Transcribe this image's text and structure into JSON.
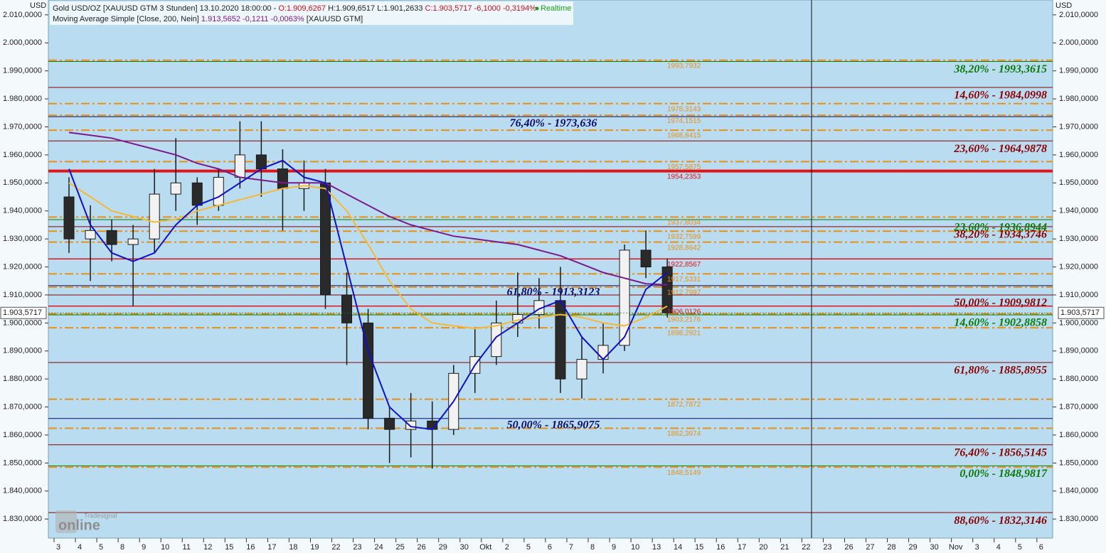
{
  "chart_data": {
    "type": "candlestick",
    "unit_left": "USD",
    "unit_right": "USD",
    "header": {
      "title": "Gold USD/OZ [XAUUSD GTM 3 Stunden] 13.10.2020 18:00:00 -",
      "open": "O:1.909,6267",
      "high": "H:1.909,6517",
      "low": "L:1.901,2633",
      "close": "C:1.903,5717 -6,1000 -0,3194%",
      "status": "Realtime"
    },
    "categories": [
      "3",
      "4",
      "5",
      "8",
      "9",
      "10",
      "11",
      "12",
      "15",
      "16",
      "17",
      "18",
      "19",
      "22",
      "23",
      "24",
      "25",
      "26",
      "29",
      "30",
      "Okt",
      "2",
      "5",
      "6",
      "7",
      "8",
      "9",
      "10",
      "13",
      "14",
      "15",
      "16",
      "17",
      "20",
      "21",
      "22",
      "23",
      "26",
      "27",
      "28",
      "29",
      "30",
      "Nov",
      "3",
      "4",
      "5",
      "6"
    ],
    "ohlc": {
      "open": [
        1945,
        1930,
        1933,
        1928,
        1930,
        1946,
        1950,
        1942,
        1952,
        1960,
        1955,
        1948,
        1950,
        1910,
        1900,
        1866,
        1862,
        1865,
        1862,
        1882,
        1888,
        1900,
        1903,
        1908,
        1880,
        1887,
        1892,
        1926,
        1920,
        null,
        null,
        null,
        null,
        null,
        null,
        null,
        null,
        null,
        null,
        null,
        null,
        null,
        null,
        null,
        null,
        null,
        null
      ],
      "high": [
        1952,
        1942,
        1937,
        1935,
        1955,
        1966,
        1952,
        1955,
        1972,
        1972,
        1962,
        1958,
        1955,
        1918,
        1905,
        1870,
        1875,
        1872,
        1885,
        1898,
        1908,
        1918,
        1916,
        1920,
        1895,
        1900,
        1928,
        1933,
        1923,
        null,
        null,
        null,
        null,
        null,
        null,
        null,
        null,
        null,
        null,
        null,
        null,
        null,
        null,
        null,
        null,
        null,
        null
      ],
      "low": [
        1925,
        1915,
        1922,
        1906,
        1925,
        1940,
        1935,
        1940,
        1948,
        1945,
        1933,
        1940,
        1905,
        1885,
        1862,
        1850,
        1852,
        1848,
        1860,
        1875,
        1885,
        1895,
        1898,
        1875,
        1873,
        1882,
        1890,
        1916,
        1902,
        null,
        null,
        null,
        null,
        null,
        null,
        null,
        null,
        null,
        null,
        null,
        null,
        null,
        null,
        null,
        null,
        null,
        null
      ],
      "close": [
        1930,
        1933,
        1928,
        1930,
        1946,
        1950,
        1942,
        1952,
        1960,
        1955,
        1948,
        1950,
        1910,
        1900,
        1866,
        1862,
        1865,
        1862,
        1882,
        1888,
        1900,
        1903,
        1908,
        1880,
        1887,
        1892,
        1926,
        1920,
        1903.5717,
        null,
        null,
        null,
        null,
        null,
        null,
        null,
        null,
        null,
        null,
        null,
        null,
        null,
        null,
        null,
        null,
        null,
        null
      ]
    },
    "series": [
      {
        "name": "Moving Average Simple [Close, 200, Nein]",
        "stats": "1.913,5652 -0,1211 -0,0063%",
        "source": "[XAUUSD GTM]",
        "color": "#7b1a8c",
        "values": [
          1968,
          1967,
          1966,
          1964,
          1962,
          1960,
          1957,
          1955,
          1952,
          1951,
          1950,
          1950,
          1950,
          1946,
          1942,
          1938,
          1935,
          1933,
          1931,
          1930,
          1929,
          1928,
          1926,
          1924,
          1921,
          1918,
          1916,
          1914,
          1913.6,
          null,
          null,
          null,
          null,
          null,
          null,
          null,
          null,
          null,
          null,
          null,
          null,
          null,
          null,
          null,
          null,
          null,
          null
        ]
      },
      {
        "color": "#f5b93a",
        "values": [
          1950,
          1945,
          1940,
          1938,
          1936,
          1937,
          1940,
          1942,
          1944,
          1946,
          1948,
          1949,
          1948,
          1940,
          1928,
          1915,
          1905,
          1900,
          1899,
          1898,
          1899,
          1901,
          1902,
          1903,
          1902,
          1900,
          1899,
          1902,
          1906,
          null,
          null,
          null,
          null,
          null,
          null,
          null,
          null,
          null,
          null,
          null,
          null,
          null,
          null,
          null,
          null,
          null,
          null
        ]
      },
      {
        "color": "#1010c8",
        "values": [
          1955,
          1935,
          1925,
          1922,
          1925,
          1935,
          1942,
          1945,
          1950,
          1955,
          1958,
          1952,
          1950,
          1920,
          1890,
          1870,
          1863,
          1862,
          1872,
          1885,
          1895,
          1900,
          1905,
          1908,
          1895,
          1887,
          1895,
          1912,
          1918,
          null,
          null,
          null,
          null,
          null,
          null,
          null,
          null,
          null,
          null,
          null,
          null,
          null,
          null,
          null,
          null,
          null,
          null
        ]
      }
    ],
    "ylim": [
      1823.2,
      2015.3
    ],
    "yticks": [
      {
        "value": 2010,
        "label": "2.010,0000"
      },
      {
        "value": 2000,
        "label": "2.000,0000"
      },
      {
        "value": 1990,
        "label": "1.990,0000"
      },
      {
        "value": 1980,
        "label": "1.980,0000"
      },
      {
        "value": 1970,
        "label": "1.970,0000"
      },
      {
        "value": 1960,
        "label": "1.960,0000"
      },
      {
        "value": 1950,
        "label": "1.950,0000"
      },
      {
        "value": 1940,
        "label": "1.940,0000"
      },
      {
        "value": 1930,
        "label": "1.930,0000"
      },
      {
        "value": 1920,
        "label": "1.920,0000"
      },
      {
        "value": 1910,
        "label": "1.910,0000"
      },
      {
        "value": 1900,
        "label": "1.900,0000"
      },
      {
        "value": 1890,
        "label": "1.890,0000"
      },
      {
        "value": 1880,
        "label": "1.880,0000"
      },
      {
        "value": 1870,
        "label": "1.870,0000"
      },
      {
        "value": 1860,
        "label": "1.860,0000"
      },
      {
        "value": 1850,
        "label": "1.850,0000"
      },
      {
        "value": 1840,
        "label": "1.840,0000"
      },
      {
        "value": 1830,
        "label": "1.830,0000"
      }
    ],
    "fib_levels": [
      {
        "value": 1993.3615,
        "label": "38,20% - 1993,3615",
        "color": "#0a7a0a"
      },
      {
        "value": 1984.0998,
        "label": "14,60% - 1984,0998",
        "color": "#8b0000"
      },
      {
        "value": 1964.9878,
        "label": "23,60% - 1964,9878",
        "color": "#8b0000"
      },
      {
        "value": 1936.8944,
        "label": "23,60% - 1936,8944",
        "color": "#0a7a0a"
      },
      {
        "value": 1934.3746,
        "label": "38,20% - 1934,3746",
        "color": "#8b0000"
      },
      {
        "value": 1909.9812,
        "label": "50,00% - 1909,9812",
        "color": "#8b0000"
      },
      {
        "value": 1902.8858,
        "label": "14,60% - 1902,8858",
        "color": "#0a7a0a"
      },
      {
        "value": 1885.8955,
        "label": "61,80% - 1885,8955",
        "color": "#8b0000"
      },
      {
        "value": 1856.5145,
        "label": "76,40% - 1856,5145",
        "color": "#8b0000"
      },
      {
        "value": 1848.9817,
        "label": "0,00% - 1848,9817",
        "color": "#0a7a0a"
      },
      {
        "value": 1832.3146,
        "label": "88,60% - 1832,3146",
        "color": "#8b0000"
      }
    ],
    "wave_levels": [
      {
        "value": 1973.636,
        "label": "76,40% - 1973,636",
        "color": "#0a0a6e"
      },
      {
        "value": 1913.3123,
        "label": "61,80% - 1913,3123",
        "color": "#0a0a6e"
      },
      {
        "value": 1865.9075,
        "label": "50,00% - 1865,9075",
        "color": "#0a0a6e"
      }
    ],
    "price_levels": [
      {
        "value": 1993.7932,
        "label": "1993,7932",
        "color": "#e8901a",
        "style": "dashdot"
      },
      {
        "value": 1978.3143,
        "label": "1978,3143",
        "color": "#e8901a",
        "style": "dashdot"
      },
      {
        "value": 1974.1515,
        "label": "1974,1515",
        "color": "#e8901a",
        "style": "dashdot"
      },
      {
        "value": 1968.8415,
        "label": "1968,8415",
        "color": "#e8901a",
        "style": "dashdot"
      },
      {
        "value": 1957.5875,
        "label": "1957,5875",
        "color": "#e8901a",
        "style": "dashdot"
      },
      {
        "value": 1954.2353,
        "label": "1954,2353",
        "color": "#e0141a",
        "style": "thick"
      },
      {
        "value": 1937.8034,
        "label": "1937,8034",
        "color": "#e8901a",
        "style": "dashdot"
      },
      {
        "value": 1932.7599,
        "label": "1932,7599",
        "color": "#e8901a",
        "style": "dashdot"
      },
      {
        "value": 1928.8642,
        "label": "1928,8642",
        "color": "#e8901a",
        "style": "dashdot"
      },
      {
        "value": 1922.8567,
        "label": "1922,8567",
        "color": "#e0141a",
        "style": "solid"
      },
      {
        "value": 1917.5331,
        "label": "1917,5331",
        "color": "#e8901a",
        "style": "dashdot"
      },
      {
        "value": 1912.7997,
        "label": "1912,7997",
        "color": "#e8901a",
        "style": "dashdot"
      },
      {
        "value": 1906.0126,
        "label": "1906,0126",
        "color": "#e0141a",
        "style": "solid"
      },
      {
        "value": 1903.2176,
        "label": "1903,2176",
        "color": "#e8901a",
        "style": "dashdot"
      },
      {
        "value": 1898.2921,
        "label": "1898,2921",
        "color": "#e8901a",
        "style": "dashdot"
      },
      {
        "value": 1872.7872,
        "label": "1872,7872",
        "color": "#e8901a",
        "style": "dashdot"
      },
      {
        "value": 1862.3974,
        "label": "1862,3974",
        "color": "#e8901a",
        "style": "dashdot"
      },
      {
        "value": 1848.5149,
        "label": "1848,5149",
        "color": "#e8901a",
        "style": "dashdot"
      }
    ],
    "last_price": {
      "value": 1903.5717,
      "label": "1.903,5717"
    },
    "watermark": [
      "Tradesignal",
      "online"
    ]
  }
}
